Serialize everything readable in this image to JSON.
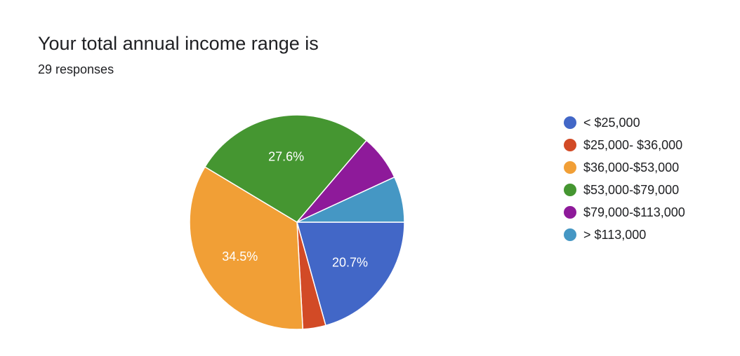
{
  "header": {
    "title": "Your total annual income range is",
    "responses": "29 responses"
  },
  "chart_data": {
    "type": "pie",
    "title": "Your total annual income range is",
    "subtitle": "29 responses",
    "legend_position": "right",
    "slices": [
      {
        "label": "< $25,000",
        "value": 6,
        "percent": 20.7,
        "color": "#4267c7",
        "show_label": true
      },
      {
        "label": "$25,000- $36,000",
        "value": 1,
        "percent": 3.4,
        "color": "#d24a26",
        "show_label": false
      },
      {
        "label": "$36,000-$53,000",
        "value": 10,
        "percent": 34.5,
        "color": "#f19f36",
        "show_label": true
      },
      {
        "label": "$53,000-$79,000",
        "value": 8,
        "percent": 27.6,
        "color": "#459631",
        "show_label": true
      },
      {
        "label": "$79,000-$113,000",
        "value": 2,
        "percent": 6.9,
        "color": "#8e1a9a",
        "show_label": false
      },
      {
        "label": "> $113,000",
        "value": 2,
        "percent": 6.9,
        "color": "#4597c4",
        "show_label": false
      }
    ]
  }
}
